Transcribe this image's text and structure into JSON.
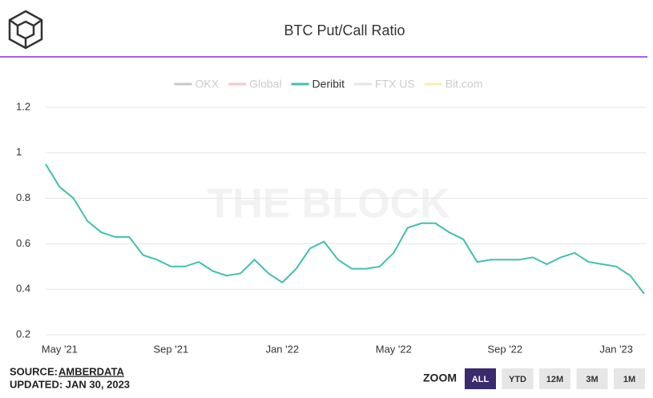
{
  "chart_data": {
    "type": "line",
    "title": "BTC Put/Call Ratio",
    "watermark": "THE BLOCK",
    "categories": [
      null,
      "May '21",
      null,
      null,
      null,
      null,
      null,
      null,
      null,
      "Sep '21",
      null,
      null,
      null,
      null,
      null,
      null,
      null,
      "Jan '22",
      null,
      null,
      null,
      null,
      null,
      null,
      null,
      "May '22",
      null,
      null,
      null,
      null,
      null,
      null,
      null,
      "Sep '22",
      null,
      null,
      null,
      null,
      null,
      null,
      null,
      "Jan '23",
      null,
      null
    ],
    "series": [
      {
        "name": "OKX",
        "color": "#c8c8c8",
        "visible": false
      },
      {
        "name": "Global",
        "color": "#f4c6cc",
        "visible": false
      },
      {
        "name": "Deribit",
        "color": "#3fc1b0",
        "visible": true,
        "values": [
          0.95,
          0.85,
          0.8,
          0.7,
          0.65,
          0.63,
          0.63,
          0.55,
          0.53,
          0.5,
          0.5,
          0.52,
          0.48,
          0.46,
          0.47,
          0.53,
          0.47,
          0.43,
          0.49,
          0.58,
          0.61,
          0.53,
          0.49,
          0.49,
          0.5,
          0.56,
          0.67,
          0.69,
          0.69,
          0.65,
          0.62,
          0.52,
          0.53,
          0.53,
          0.53,
          0.54,
          0.51,
          0.54,
          0.56,
          0.52,
          0.51,
          0.5,
          0.46,
          0.38
        ]
      },
      {
        "name": "FTX US",
        "color": "#e6e6e6",
        "visible": false
      },
      {
        "name": "Bit.com",
        "color": "#f7eeb0",
        "visible": false
      }
    ],
    "ylim": [
      0.2,
      1.2
    ],
    "yticks": [
      0.2,
      0.4,
      0.6,
      0.8,
      1,
      1.2
    ],
    "grid": true
  },
  "footer": {
    "source_label": "SOURCE:",
    "source": "AMBERDATA",
    "updated": "UPDATED: JAN 30, 2023",
    "zoom_label": "ZOOM",
    "zoom_buttons": [
      "ALL",
      "YTD",
      "12M",
      "3M",
      "1M"
    ],
    "zoom_active": 0
  }
}
